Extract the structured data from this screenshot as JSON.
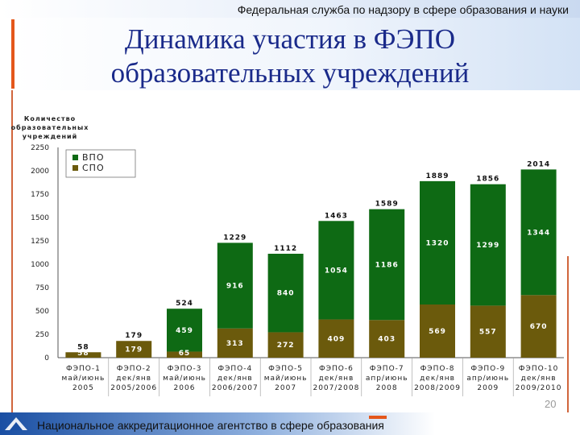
{
  "header": {
    "agency": "Федеральная служба по надзору в сфере образования и науки",
    "title_line1": "Динамика участия в ФЭПО",
    "title_line2": "образовательных учреждений"
  },
  "footer": {
    "organization": "Национальное аккредитационное агентство в сфере образования",
    "page_number": "20"
  },
  "colors": {
    "vpo": "#0e6a14",
    "spo": "#6b5a0c",
    "accent": "#e4571b"
  },
  "chart_data": {
    "type": "bar",
    "stacked": true,
    "ylabel_lines": [
      "Количество",
      "образовательных",
      "учреждений"
    ],
    "ylim": [
      0,
      2250
    ],
    "yticks": [
      0,
      250,
      500,
      750,
      1000,
      1250,
      1500,
      1750,
      2000,
      2250
    ],
    "legend": [
      "ВПО",
      "СПО"
    ],
    "legend_position": "top-left",
    "categories": [
      [
        "ФЭПО-1",
        "май/июнь",
        "2005"
      ],
      [
        "ФЭПО-2",
        "дек/янв",
        "2005/2006"
      ],
      [
        "ФЭПО-3",
        "май/июнь",
        "2006"
      ],
      [
        "ФЭПО-4",
        "дек/янв",
        "2006/2007"
      ],
      [
        "ФЭПО-5",
        "май/июнь",
        "2007"
      ],
      [
        "ФЭПО-6",
        "дек/янв",
        "2007/2008"
      ],
      [
        "ФЭПО-7",
        "апр/июнь",
        "2008"
      ],
      [
        "ФЭПО-8",
        "дек/янв",
        "2008/2009"
      ],
      [
        "ФЭПО-9",
        "апр/июнь",
        "2009"
      ],
      [
        "ФЭПО-10",
        "дек/янв",
        "2009/2010"
      ]
    ],
    "series": [
      {
        "name": "СПО",
        "values": [
          58,
          179,
          65,
          313,
          272,
          409,
          403,
          569,
          557,
          670
        ]
      },
      {
        "name": "ВПО",
        "values": [
          0,
          0,
          459,
          916,
          840,
          1054,
          1186,
          1320,
          1299,
          1344
        ]
      }
    ],
    "totals": [
      58,
      179,
      524,
      1229,
      1112,
      1463,
      1589,
      1889,
      1856,
      2014
    ]
  }
}
